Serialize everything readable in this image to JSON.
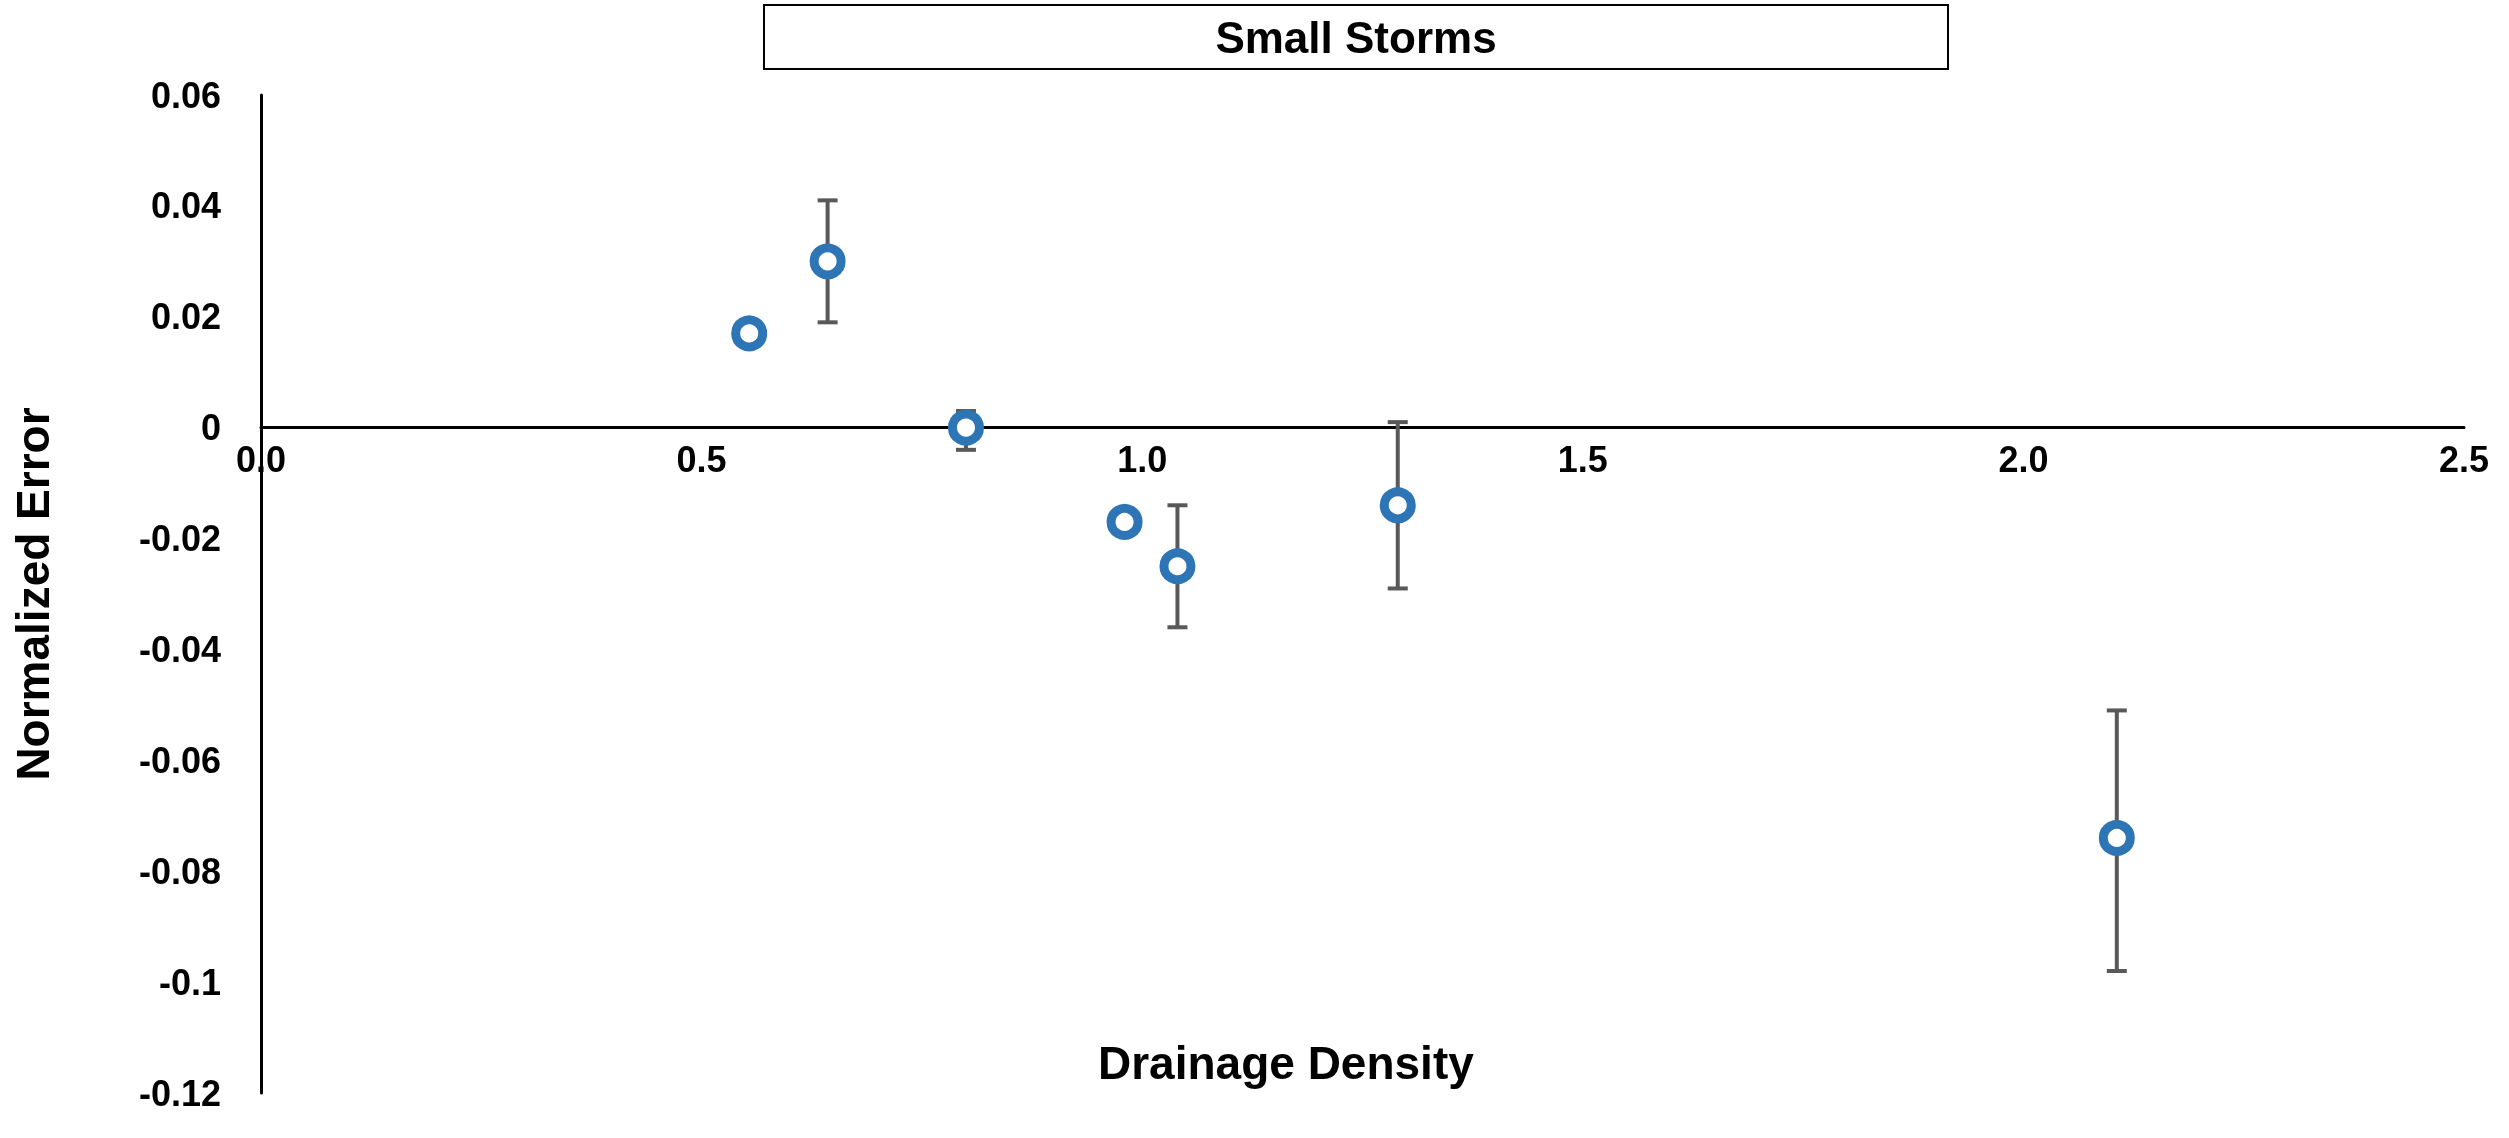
{
  "chart_data": {
    "type": "scatter",
    "title": "Small Storms",
    "xlabel": "Drainage Density",
    "ylabel": "Normalized Error",
    "x": [
      0.554,
      0.643,
      0.8,
      0.98,
      1.04,
      1.29,
      2.106
    ],
    "series": [
      {
        "color": "#2e75b6",
        "values": [
          0.017,
          0.03,
          0.0,
          -0.017,
          -0.025,
          -0.014,
          -0.074
        ],
        "errors": [
          null,
          [
            0.019,
            0.041
          ],
          [
            -0.004,
            0.003
          ],
          null,
          [
            -0.036,
            -0.014
          ],
          [
            -0.029,
            0.001
          ],
          [
            -0.098,
            -0.051
          ]
        ]
      }
    ],
    "xlim": [
      0,
      2.5
    ],
    "xticks": [
      {
        "value": 0,
        "label": "0.0"
      },
      {
        "value": 0.5,
        "label": "0.5"
      },
      {
        "value": 1,
        "label": "1.0"
      },
      {
        "value": 1.5,
        "label": "1.5"
      },
      {
        "value": 2,
        "label": "2.0"
      },
      {
        "value": 2.5,
        "label": "2.5"
      }
    ],
    "ylim": [
      -0.12,
      0.06
    ],
    "yticks": [
      0.06,
      0.04,
      0.02,
      0,
      -0.02,
      -0.04,
      -0.06,
      -0.08,
      -0.1,
      -0.12
    ],
    "marker": "circle"
  }
}
